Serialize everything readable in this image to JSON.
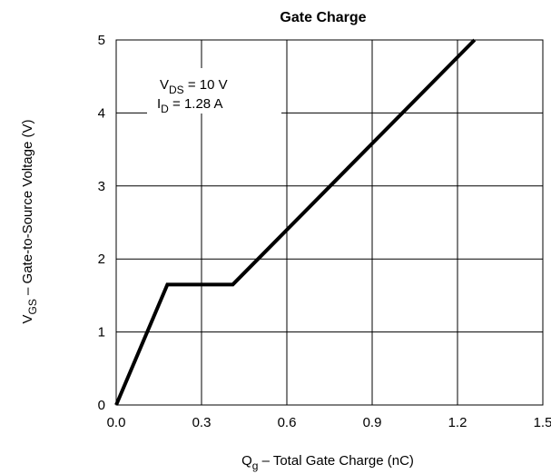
{
  "chart_data": {
    "type": "line",
    "title": "Gate Charge",
    "xlabel": {
      "main": "Q",
      "sub": "g",
      "rest": "  –  Total Gate Charge (nC)"
    },
    "ylabel": {
      "main": "V",
      "sub": "GS",
      "rest": "  –  Gate-to-Source Voltage (V)"
    },
    "xlim": [
      0,
      1.5
    ],
    "ylim": [
      0,
      5
    ],
    "xticks": [
      "0.0",
      "0.3",
      "0.6",
      "0.9",
      "1.2",
      "1.5"
    ],
    "yticks": [
      "0",
      "1",
      "2",
      "3",
      "4",
      "5"
    ],
    "grid": true,
    "series": [
      {
        "x": [
          0,
          0.18,
          0.41,
          1.26
        ],
        "y": [
          0,
          1.65,
          1.65,
          5.0
        ]
      }
    ],
    "annotations": [
      {
        "main": "V",
        "sub": "DS",
        "rest": " = 10  V"
      },
      {
        "main": "I",
        "sub": "D",
        "rest": " = 1.28   A"
      }
    ]
  }
}
